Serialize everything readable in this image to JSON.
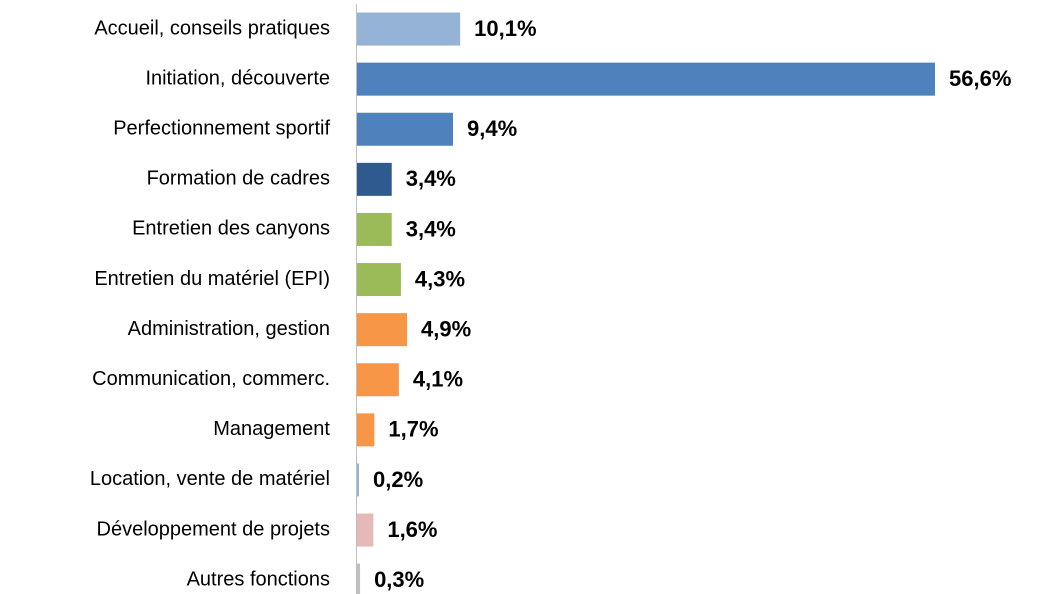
{
  "chart_data": {
    "type": "barh",
    "categories": [
      "Accueil, conseils pratiques",
      "Initiation, découverte",
      "Perfectionnement sportif",
      "Formation de cadres",
      "Entretien des canyons",
      "Entretien du matériel (EPI)",
      "Administration, gestion",
      "Communication, commerc.",
      "Management",
      "Location, vente de matériel",
      "Développement de projets",
      "Autres fonctions"
    ],
    "values": [
      10.1,
      56.6,
      9.4,
      3.4,
      3.4,
      4.3,
      4.9,
      4.1,
      1.7,
      0.2,
      1.6,
      0.3
    ],
    "value_labels": [
      "10,1%",
      "56,6%",
      "9,4%",
      "3,4%",
      "3,4%",
      "4,3%",
      "4,9%",
      "4,1%",
      "1,7%",
      "0,2%",
      "1,6%",
      "0,3%"
    ],
    "colors": [
      "#95b3d7",
      "#4f81bd",
      "#4f81bd",
      "#2f5a8f",
      "#9bbb59",
      "#9bbb59",
      "#f79646",
      "#f79646",
      "#f79646",
      "#95b3d7",
      "#e6b9b8",
      "#bfbfbf"
    ]
  }
}
